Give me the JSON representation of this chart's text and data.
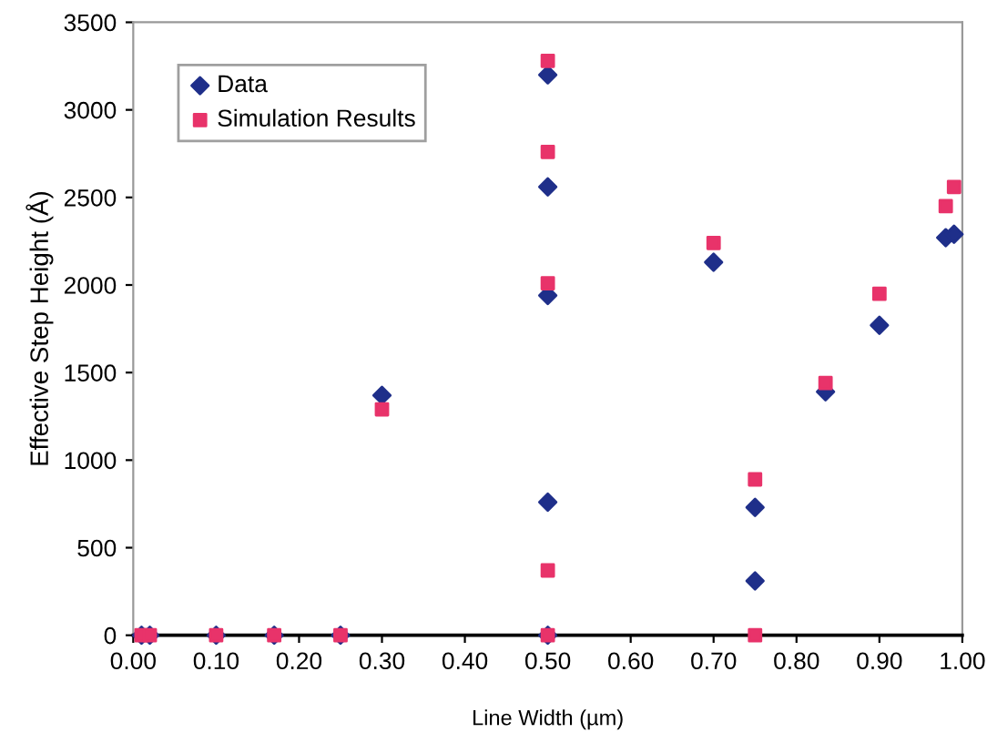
{
  "chart_data": {
    "type": "scatter",
    "xlabel": "Line Width (µm)",
    "ylabel": "Effective Step Height (Å)",
    "xlim": [
      0,
      1
    ],
    "ylim": [
      0,
      3500
    ],
    "xticks": [
      {
        "value": 0,
        "label": "0.00"
      },
      {
        "value": 0.1,
        "label": "0.10"
      },
      {
        "value": 0.2,
        "label": "0.20"
      },
      {
        "value": 0.3,
        "label": "0.30"
      },
      {
        "value": 0.4,
        "label": "0.40"
      },
      {
        "value": 0.5,
        "label": "0.50"
      },
      {
        "value": 0.6,
        "label": "0.60"
      },
      {
        "value": 0.7,
        "label": "0.70"
      },
      {
        "value": 0.8,
        "label": "0.80"
      },
      {
        "value": 0.9,
        "label": "0.90"
      },
      {
        "value": 1,
        "label": "1.00"
      }
    ],
    "yticks": [
      0,
      500,
      1000,
      1500,
      2000,
      2500,
      3000,
      3500
    ],
    "grid": false,
    "legend": "top left",
    "series": [
      {
        "name": "Data",
        "color": "#1f2f8a",
        "marker": "diamond",
        "x": [
          0.01,
          0.02,
          0.1,
          0.17,
          0.25,
          0.3,
          0.5,
          0.5,
          0.5,
          0.5,
          0.5,
          0.7,
          0.75,
          0.75,
          0.835,
          0.9,
          0.98,
          0.99
        ],
        "values": [
          0,
          0,
          0,
          0,
          0,
          1370,
          3200,
          2560,
          1940,
          760,
          0,
          2130,
          730,
          310,
          1390,
          1770,
          2270,
          2290
        ]
      },
      {
        "name": "Simulation Results",
        "color": "#e8336a",
        "marker": "square",
        "x": [
          0.01,
          0.02,
          0.1,
          0.17,
          0.25,
          0.3,
          0.5,
          0.5,
          0.5,
          0.5,
          0.5,
          0.7,
          0.75,
          0.75,
          0.835,
          0.9,
          0.98,
          0.99
        ],
        "values": [
          0,
          0,
          0,
          0,
          0,
          1290,
          3280,
          2760,
          2010,
          370,
          0,
          2240,
          890,
          0,
          1440,
          1950,
          2450,
          2560
        ]
      }
    ]
  }
}
